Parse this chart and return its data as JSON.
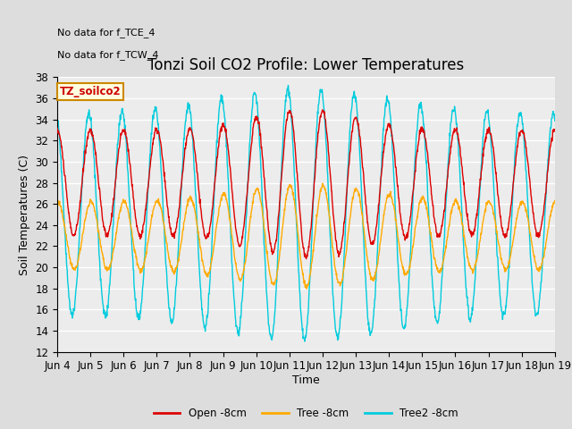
{
  "title": "Tonzi Soil CO2 Profile: Lower Temperatures",
  "ylabel": "Soil Temperatures (C)",
  "xlabel": "Time",
  "annotations": [
    "No data for f_TCE_4",
    "No data for f_TCW_4"
  ],
  "legend_label": "TZ_soilco2",
  "ylim": [
    12,
    38
  ],
  "yticks": [
    12,
    14,
    16,
    18,
    20,
    22,
    24,
    26,
    28,
    30,
    32,
    34,
    36,
    38
  ],
  "xtick_labels": [
    "Jun 4",
    "Jun 5",
    "Jun 6",
    "Jun 7",
    "Jun 8",
    "Jun 9",
    "Jun 10",
    "Jun 11",
    "Jun 12",
    "Jun 13",
    "Jun 14",
    "Jun 15",
    "Jun 16",
    "Jun 17",
    "Jun 18",
    "Jun 19"
  ],
  "series_colors": [
    "#dd0000",
    "#ffaa00",
    "#00ccdd"
  ],
  "series_labels": [
    "Open -8cm",
    "Tree -8cm",
    "Tree2 -8cm"
  ],
  "background_color": "#dddddd",
  "plot_bg_color": "#ececec",
  "title_fontsize": 12,
  "label_fontsize": 9,
  "tick_fontsize": 8.5
}
